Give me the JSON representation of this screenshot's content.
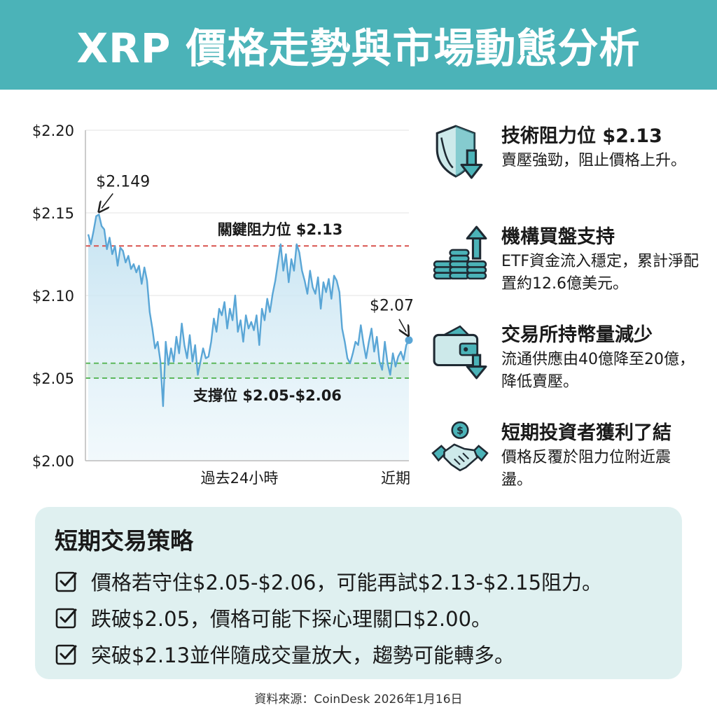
{
  "header": {
    "title": "XRP 價格走勢與市場動態分析"
  },
  "colors": {
    "header_bg": "#4bb3b8",
    "line": "#5aa6d6",
    "resistance": "#d9534f",
    "support": "#5cb85c",
    "icon": "#4bb3b8",
    "panel_bg": "#dff0f0"
  },
  "chart_data": {
    "type": "line",
    "title": "",
    "xlabel": "",
    "ylabel": "",
    "ylim": [
      2.0,
      2.2
    ],
    "yticks": [
      "$2.20",
      "$2.15",
      "$2.10",
      "$2.05",
      "$2.00"
    ],
    "x_labels": [
      "過去24小時",
      "近期"
    ],
    "grid": true,
    "series": [
      {
        "values": [
          2.137,
          2.131,
          2.139,
          2.148,
          2.149,
          2.142,
          2.14,
          2.128,
          2.135,
          2.125,
          2.13,
          2.118,
          2.129,
          2.127,
          2.12,
          2.124,
          2.116,
          2.119,
          2.114,
          2.118,
          2.107,
          2.117,
          2.109,
          2.09,
          2.08,
          2.068,
          2.072,
          2.06,
          2.033,
          2.072,
          2.058,
          2.068,
          2.06,
          2.075,
          2.065,
          2.083,
          2.07,
          2.062,
          2.076,
          2.06,
          2.07,
          2.052,
          2.06,
          2.068,
          2.062,
          2.063,
          2.072,
          2.086,
          2.078,
          2.092,
          2.088,
          2.096,
          2.08,
          2.092,
          2.085,
          2.1,
          2.078,
          2.085,
          2.072,
          2.088,
          2.08,
          2.084,
          2.079,
          2.088,
          2.07,
          2.092,
          2.085,
          2.098,
          2.09,
          2.101,
          2.109,
          2.12,
          2.131,
          2.115,
          2.125,
          2.108,
          2.122,
          2.115,
          2.131,
          2.126,
          2.115,
          2.109,
          2.101,
          2.115,
          2.105,
          2.101,
          2.111,
          2.092,
          2.108,
          2.102,
          2.11,
          2.098,
          2.112,
          2.109,
          2.102,
          2.08,
          2.072,
          2.062,
          2.059,
          2.065,
          2.072,
          2.07,
          2.082,
          2.071,
          2.062,
          2.072,
          2.08,
          2.066,
          2.075,
          2.06,
          2.055,
          2.072,
          2.059,
          2.052,
          2.065,
          2.057,
          2.063,
          2.066,
          2.061,
          2.07,
          2.073
        ]
      }
    ],
    "reference_lines": [
      {
        "label": "關鍵阻力位 $2.13",
        "value": 2.13,
        "color": "#d9534f"
      },
      {
        "label": "支撐位 $2.05-$2.06",
        "values": [
          2.05,
          2.059
        ],
        "color": "#5cb85c"
      }
    ],
    "annotations": [
      {
        "text": "$2.149",
        "x_index": 4,
        "value": 2.149
      },
      {
        "text": "$2.07",
        "x_index": 120,
        "value": 2.073
      }
    ]
  },
  "features": [
    {
      "icon": "shield-down-arrow-icon",
      "title": "技術阻力位 $2.13",
      "desc": "賣壓強勁，阻止價格上升。"
    },
    {
      "icon": "coins-up-arrow-icon",
      "title": "機構買盤支持",
      "desc": "ETF資金流入穩定，累計淨配置約12.6億美元。"
    },
    {
      "icon": "wallet-down-arrow-icon",
      "title": "交易所持幣量減少",
      "desc": "流通供應由40億降至20億，降低賣壓。"
    },
    {
      "icon": "handshake-dollar-icon",
      "title": "短期投資者獲利了結",
      "desc": "價格反覆於阻力位附近震盪。"
    }
  ],
  "strategy": {
    "title": "短期交易策略",
    "items": [
      "價格若守住$2.05-$2.06，可能再試$2.13-$2.15阻力。",
      "跌破$2.05，價格可能下探心理關口$2.00。",
      "突破$2.13並伴隨成交量放大，趨勢可能轉多。"
    ]
  },
  "source": "資料來源：CoinDesk 2026年1月16日"
}
